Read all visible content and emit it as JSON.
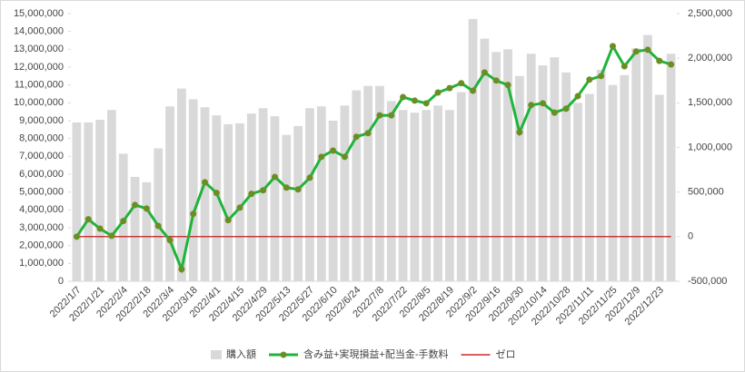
{
  "chart_data": {
    "type": "combo",
    "categories": [
      "2022/1/7",
      null,
      "2022/1/21",
      null,
      "2022/2/4",
      null,
      "2022/2/18",
      null,
      "2022/3/4",
      null,
      "2022/3/18",
      null,
      "2022/4/1",
      null,
      "2022/4/15",
      null,
      "2022/4/29",
      null,
      "2022/5/13",
      null,
      "2022/5/27",
      null,
      "2022/6/10",
      null,
      "2022/6/24",
      null,
      "2022/7/8",
      null,
      "2022/7/22",
      null,
      "2022/8/5",
      null,
      "2022/8/19",
      null,
      "2022/9/2",
      null,
      "2022/9/16",
      null,
      "2022/9/30",
      null,
      "2022/10/14",
      null,
      "2022/10/28",
      null,
      "2022/11/11",
      null,
      "2022/11/25",
      null,
      "2022/12/9",
      null,
      "2022/12/23",
      null
    ],
    "series": [
      {
        "name": "購入額",
        "type": "bar",
        "color": "#d9d9d9",
        "axis": "y",
        "values": [
          8900000,
          8900000,
          9050000,
          9600000,
          7150000,
          5850000,
          5550000,
          7450000,
          9800000,
          10800000,
          10200000,
          9750000,
          9300000,
          8800000,
          8850000,
          9400000,
          9700000,
          9250000,
          8200000,
          8700000,
          9700000,
          9800000,
          9000000,
          9850000,
          10700000,
          10950000,
          10950000,
          10100000,
          9600000,
          9450000,
          9600000,
          9850000,
          9600000,
          10600000,
          14700000,
          13600000,
          12850000,
          13000000,
          11500000,
          12750000,
          12100000,
          12550000,
          11700000,
          10000000,
          10500000,
          11850000,
          11000000,
          11550000,
          13050000,
          13800000,
          10450000,
          12750000
        ]
      },
      {
        "name": "含み益+実現損益+配当金-手数料",
        "type": "line",
        "color": "#1fb43a",
        "marker_color": "#6b8e23",
        "axis": "y2",
        "values": [
          0,
          195000,
          90000,
          10000,
          175000,
          355000,
          315000,
          120000,
          -40000,
          -365000,
          255000,
          610000,
          490000,
          185000,
          325000,
          480000,
          520000,
          670000,
          550000,
          530000,
          660000,
          895000,
          965000,
          895000,
          1120000,
          1160000,
          1360000,
          1360000,
          1565000,
          1525000,
          1495000,
          1615000,
          1665000,
          1720000,
          1635000,
          1840000,
          1750000,
          1700000,
          1170000,
          1475000,
          1495000,
          1390000,
          1435000,
          1575000,
          1760000,
          1800000,
          2135000,
          1910000,
          2075000,
          2095000,
          1970000,
          1930000
        ]
      },
      {
        "name": "ゼロ",
        "type": "line",
        "color": "#c00000",
        "axis": "y2",
        "values": [
          0,
          0,
          0,
          0,
          0,
          0,
          0,
          0,
          0,
          0,
          0,
          0,
          0,
          0,
          0,
          0,
          0,
          0,
          0,
          0,
          0,
          0,
          0,
          0,
          0,
          0,
          0,
          0,
          0,
          0,
          0,
          0,
          0,
          0,
          0,
          0,
          0,
          0,
          0,
          0,
          0,
          0,
          0,
          0,
          0,
          0,
          0,
          0,
          0,
          0,
          0,
          0
        ]
      }
    ],
    "ylim": [
      0,
      15000000
    ],
    "yticks": [
      0,
      {
        "value": 1000000,
        "label": "1,000,000"
      },
      {
        "value": 2000000,
        "label": "2,000,000"
      },
      {
        "value": 3000000,
        "label": "3,000,000"
      },
      {
        "value": 4000000,
        "label": "4,000,000"
      },
      {
        "value": 5000000,
        "label": "5,000,000"
      },
      {
        "value": 6000000,
        "label": "6,000,000"
      },
      {
        "value": 7000000,
        "label": "7,000,000"
      },
      {
        "value": 8000000,
        "label": "8,000,000"
      },
      {
        "value": 9000000,
        "label": "9,000,000"
      },
      {
        "value": 10000000,
        "label": "10,000,000"
      },
      {
        "value": 11000000,
        "label": "11,000,000"
      },
      {
        "value": 12000000,
        "label": "12,000,000"
      },
      {
        "value": 13000000,
        "label": "13,000,000"
      },
      {
        "value": 14000000,
        "label": "14,000,000"
      },
      {
        "value": 15000000,
        "label": "15,000,000"
      }
    ],
    "y2lim": [
      -500000,
      2500000
    ],
    "y2ticks": [
      {
        "value": -500000,
        "label": "-500,000"
      },
      0,
      {
        "value": 500000,
        "label": "500,000"
      },
      {
        "value": 1000000,
        "label": "1,000,000"
      },
      {
        "value": 1500000,
        "label": "1,500,000"
      },
      {
        "value": 2000000,
        "label": "2,000,000"
      },
      {
        "value": 2500000,
        "label": "2,500,000"
      }
    ],
    "legend": "bottom"
  }
}
